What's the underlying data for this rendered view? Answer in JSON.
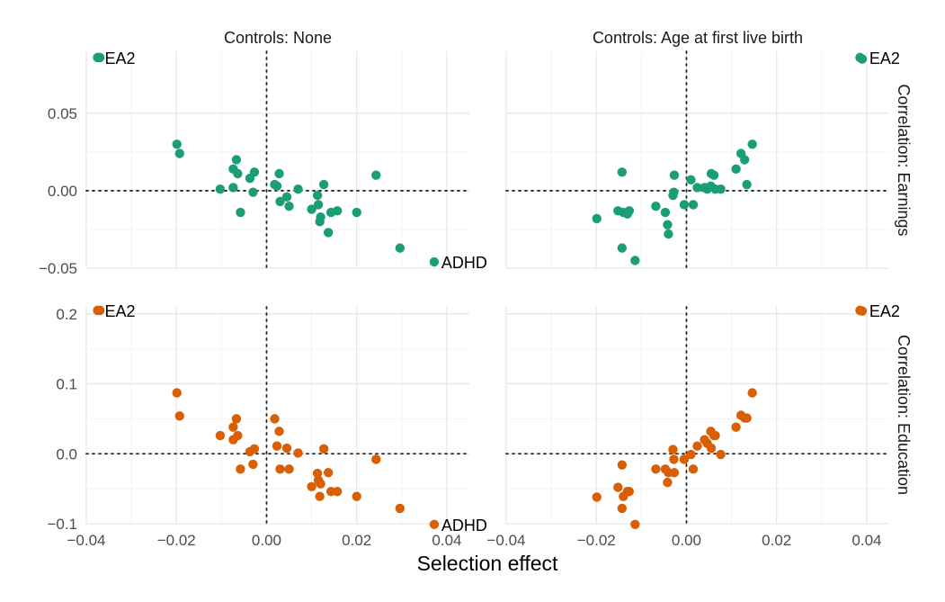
{
  "chart_data": {
    "type": "scatter",
    "xlabel": "Selection effect",
    "col_strips": [
      "Controls: None",
      "Controls: Age at first live birth"
    ],
    "row_strips": [
      "Correlation: Earnings",
      "Correlation: Education"
    ],
    "xlim": [
      -0.04,
      0.045
    ],
    "x_ticks": [
      -0.04,
      -0.02,
      0.0,
      0.02,
      0.04
    ],
    "x_tick_labels": [
      "−0.04",
      "−0.02",
      "0.00",
      "0.02",
      "0.04"
    ],
    "y_panels": [
      {
        "ylim": [
          -0.05,
          0.09
        ],
        "ticks": [
          -0.05,
          0.0,
          0.05
        ],
        "tick_labels": [
          "−0.05",
          "0.00",
          "0.05"
        ]
      },
      {
        "ylim": [
          -0.1,
          0.21
        ],
        "ticks": [
          -0.1,
          0.0,
          0.1,
          0.2
        ],
        "tick_labels": [
          "−0.1",
          "0.0",
          "0.1",
          "0.2"
        ]
      }
    ],
    "colors": [
      "#1b9e77",
      "#d95f02"
    ],
    "panels": [
      {
        "row": 0,
        "col": 0,
        "points": [
          [
            -0.0375,
            0.086
          ],
          [
            -0.037,
            0.086
          ],
          [
            -0.0199,
            0.03
          ],
          [
            -0.0193,
            0.024
          ],
          [
            -0.0103,
            0.001
          ],
          [
            -0.0074,
            0.002
          ],
          [
            -0.0074,
            0.014
          ],
          [
            -0.0067,
            0.02
          ],
          [
            -0.0064,
            0.011
          ],
          [
            -0.0058,
            -0.014
          ],
          [
            -0.0037,
            0.008
          ],
          [
            -0.003,
            -0.001
          ],
          [
            -0.0027,
            0.012
          ],
          [
            0.0018,
            0.004
          ],
          [
            0.0023,
            0.003
          ],
          [
            0.0028,
            0.011
          ],
          [
            0.003,
            -0.007
          ],
          [
            0.0045,
            -0.004
          ],
          [
            0.005,
            -0.01
          ],
          [
            0.007,
            0.001
          ],
          [
            0.01,
            -0.012
          ],
          [
            0.0113,
            -0.003
          ],
          [
            0.0115,
            -0.009
          ],
          [
            0.0118,
            -0.02
          ],
          [
            0.012,
            -0.017
          ],
          [
            0.0127,
            0.004
          ],
          [
            0.0137,
            -0.027
          ],
          [
            0.0143,
            -0.014
          ],
          [
            0.0157,
            -0.013
          ],
          [
            0.02,
            -0.014
          ],
          [
            0.0243,
            0.01
          ],
          [
            0.0296,
            -0.037
          ],
          [
            0.0372,
            -0.046
          ]
        ],
        "labels": [
          {
            "text": "EA2",
            "x": -0.0375,
            "y": 0.086,
            "anchor": "start"
          },
          {
            "text": "ADHD",
            "x": 0.0372,
            "y": -0.046,
            "anchor": "start"
          }
        ]
      },
      {
        "row": 0,
        "col": 1,
        "points": [
          [
            -0.0199,
            -0.018
          ],
          [
            -0.0152,
            -0.013
          ],
          [
            -0.0143,
            -0.037
          ],
          [
            -0.0143,
            0.012
          ],
          [
            -0.014,
            -0.014
          ],
          [
            -0.0131,
            -0.015
          ],
          [
            -0.0127,
            -0.013
          ],
          [
            -0.0114,
            -0.045
          ],
          [
            -0.0068,
            -0.01
          ],
          [
            -0.0047,
            -0.014
          ],
          [
            -0.0042,
            -0.022
          ],
          [
            -0.004,
            -0.028
          ],
          [
            -0.003,
            -0.003
          ],
          [
            -0.0028,
            -0.001
          ],
          [
            -0.0027,
            0.01
          ],
          [
            -0.0005,
            -0.009
          ],
          [
            0.001,
            0.007
          ],
          [
            0.0015,
            -0.009
          ],
          [
            0.0024,
            0.002
          ],
          [
            0.004,
            0.002
          ],
          [
            0.0046,
            0.001
          ],
          [
            0.0054,
            0.003
          ],
          [
            0.0055,
            0.011
          ],
          [
            0.0061,
            0.01
          ],
          [
            0.0064,
            0.001
          ],
          [
            0.0076,
            0.001
          ],
          [
            0.011,
            0.014
          ],
          [
            0.0121,
            0.024
          ],
          [
            0.0129,
            0.02
          ],
          [
            0.0134,
            0.004
          ],
          [
            0.0146,
            0.03
          ],
          [
            0.0385,
            0.086
          ],
          [
            0.039,
            0.085
          ]
        ],
        "labels": [
          {
            "text": "EA2",
            "x": 0.039,
            "y": 0.086,
            "anchor": "start"
          }
        ]
      },
      {
        "row": 1,
        "col": 0,
        "points": [
          [
            -0.0375,
            0.205
          ],
          [
            -0.037,
            0.205
          ],
          [
            -0.0199,
            0.087
          ],
          [
            -0.0193,
            0.054
          ],
          [
            -0.0103,
            0.026
          ],
          [
            -0.0074,
            0.038
          ],
          [
            -0.0074,
            0.02
          ],
          [
            -0.0067,
            0.05
          ],
          [
            -0.0064,
            0.026
          ],
          [
            -0.0058,
            -0.022
          ],
          [
            -0.0037,
            0.003
          ],
          [
            -0.003,
            -0.015
          ],
          [
            -0.0027,
            0.007
          ],
          [
            0.0018,
            0.05
          ],
          [
            0.0023,
            0.011
          ],
          [
            0.0028,
            0.032
          ],
          [
            0.003,
            -0.022
          ],
          [
            0.0045,
            0.008
          ],
          [
            0.005,
            -0.022
          ],
          [
            0.007,
            0.001
          ],
          [
            0.01,
            -0.047
          ],
          [
            0.0113,
            -0.028
          ],
          [
            0.0115,
            -0.038
          ],
          [
            0.0118,
            -0.061
          ],
          [
            0.012,
            -0.043
          ],
          [
            0.0127,
            0.007
          ],
          [
            0.0137,
            -0.027
          ],
          [
            0.0143,
            -0.054
          ],
          [
            0.0157,
            -0.054
          ],
          [
            0.02,
            -0.061
          ],
          [
            0.0243,
            -0.008
          ],
          [
            0.0296,
            -0.078
          ],
          [
            0.0372,
            -0.101
          ]
        ],
        "labels": [
          {
            "text": "EA2",
            "x": -0.0375,
            "y": 0.205,
            "anchor": "start"
          },
          {
            "text": "ADHD",
            "x": 0.0372,
            "y": -0.101,
            "anchor": "start"
          }
        ]
      },
      {
        "row": 1,
        "col": 1,
        "points": [
          [
            -0.0199,
            -0.062
          ],
          [
            -0.0152,
            -0.048
          ],
          [
            -0.0143,
            -0.078
          ],
          [
            -0.0143,
            -0.016
          ],
          [
            -0.014,
            -0.061
          ],
          [
            -0.0131,
            -0.054
          ],
          [
            -0.0127,
            -0.054
          ],
          [
            -0.0114,
            -0.101
          ],
          [
            -0.0068,
            -0.022
          ],
          [
            -0.0047,
            -0.022
          ],
          [
            -0.0042,
            -0.041
          ],
          [
            -0.004,
            -0.027
          ],
          [
            -0.003,
            0.006
          ],
          [
            -0.0028,
            -0.008
          ],
          [
            -0.0027,
            -0.027
          ],
          [
            -0.0005,
            -0.008
          ],
          [
            0.001,
            -0.001
          ],
          [
            0.0015,
            -0.022
          ],
          [
            0.0024,
            0.011
          ],
          [
            0.004,
            0.02
          ],
          [
            0.0046,
            0.015
          ],
          [
            0.0054,
            0.032
          ],
          [
            0.0055,
            0.008
          ],
          [
            0.0061,
            0.026
          ],
          [
            0.0064,
            0.026
          ],
          [
            0.0076,
            -0.001
          ],
          [
            0.011,
            0.038
          ],
          [
            0.0121,
            0.055
          ],
          [
            0.0129,
            0.051
          ],
          [
            0.0134,
            0.051
          ],
          [
            0.0146,
            0.087
          ],
          [
            0.0385,
            0.205
          ],
          [
            0.039,
            0.204
          ]
        ],
        "labels": [
          {
            "text": "EA2",
            "x": 0.039,
            "y": 0.205,
            "anchor": "start"
          }
        ]
      }
    ]
  }
}
